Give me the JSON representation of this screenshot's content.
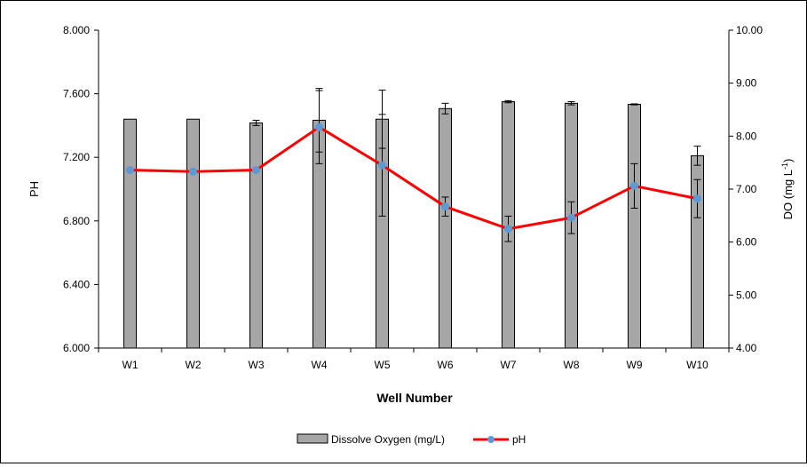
{
  "chart_data": {
    "type": "bar+line",
    "categories": [
      "W1",
      "W2",
      "W3",
      "W4",
      "W5",
      "W6",
      "W7",
      "W8",
      "W9",
      "W10"
    ],
    "xlabel": "Well Number",
    "ylabel_left": "PH",
    "ylabel_right_prefix": "DO (mg L",
    "ylabel_right_sup": "-1",
    "ylabel_right_suffix": ")",
    "left_axis": {
      "min": 6.0,
      "max": 8.0,
      "ticks": [
        "6.000",
        "6.400",
        "6.800",
        "7.200",
        "7.600",
        "8.000"
      ],
      "tick_values": [
        6.0,
        6.4,
        6.8,
        7.2,
        7.6,
        8.0
      ]
    },
    "right_axis": {
      "min": 4.0,
      "max": 10.0,
      "ticks": [
        "4.00",
        "5.00",
        "6.00",
        "7.00",
        "8.00",
        "9.00",
        "10.00"
      ],
      "tick_values": [
        4,
        5,
        6,
        7,
        8,
        9,
        10
      ]
    },
    "grid": false,
    "legend_position": "bottom",
    "series": [
      {
        "name": "Dissolve Oxygen (mg/L)",
        "kind": "bar",
        "axis": "right",
        "color": "#a6a6a6",
        "values": [
          8.32,
          8.32,
          8.25,
          8.3,
          8.32,
          8.52,
          8.65,
          8.62,
          8.6,
          7.63
        ],
        "error": [
          0,
          0,
          0.05,
          0.6,
          0.55,
          0.1,
          0.02,
          0.03,
          0.01,
          0.18
        ]
      },
      {
        "name": "pH",
        "kind": "line",
        "axis": "left",
        "color": "#ff0000",
        "marker_color": "#5b9bd5",
        "values": [
          7.12,
          7.11,
          7.12,
          7.39,
          7.15,
          6.89,
          6.75,
          6.82,
          7.02,
          6.94
        ],
        "error": [
          0,
          0,
          0,
          0.23,
          0.32,
          0.06,
          0.08,
          0.1,
          0.14,
          0.12
        ]
      }
    ]
  },
  "colors": {
    "frame": "#000000",
    "axis": "#000000",
    "error_bar": "#000000"
  }
}
